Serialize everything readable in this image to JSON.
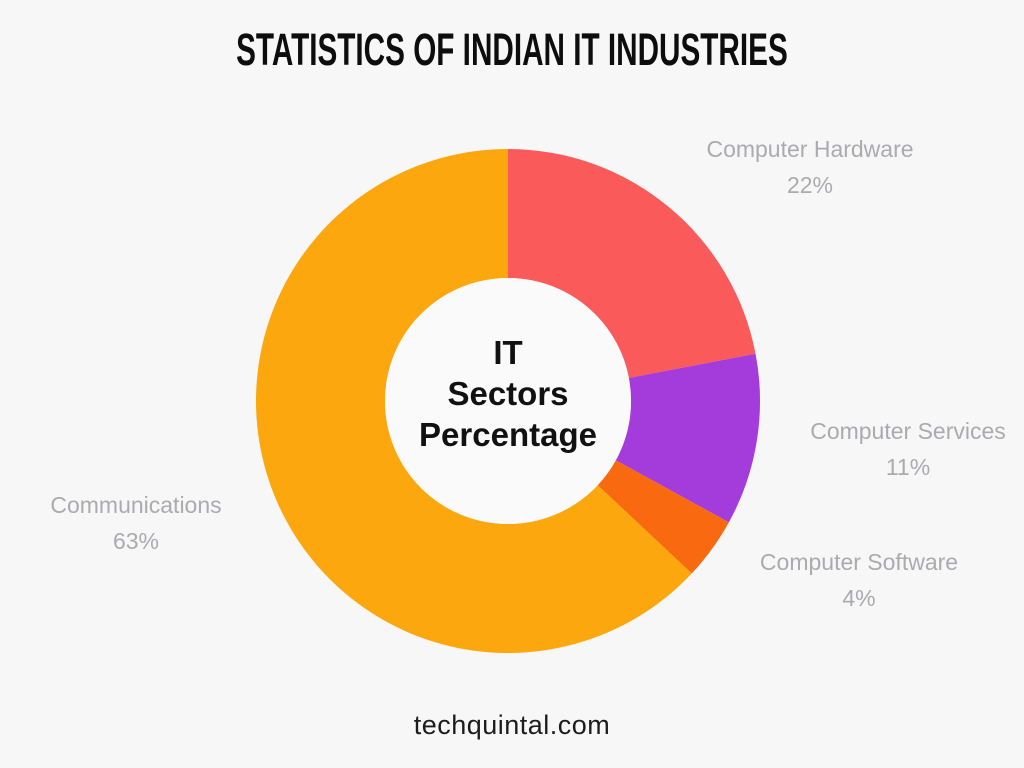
{
  "page": {
    "title": "STATISTICS OF INDIAN IT INDUSTRIES",
    "footer": "techquintal.com",
    "background_color": "#f7f7f8"
  },
  "chart_data": {
    "type": "pie",
    "subtype": "donut",
    "title": "STATISTICS OF INDIAN IT INDUSTRIES",
    "center_label": {
      "line1": "IT",
      "line2": "Sectors",
      "line3": "Percentage"
    },
    "start_angle_deg": 0,
    "direction": "clockwise",
    "inner_radius_ratio": 0.49,
    "hole_color": "#fafafb",
    "label_color": "#ababae",
    "legend_position": "outside-callouts",
    "grid": "off",
    "segments": [
      {
        "label": "Computer Hardware",
        "value": 22,
        "percent_label": "22%",
        "color": "#fb5a5a"
      },
      {
        "label": "Computer Services",
        "value": 11,
        "percent_label": "11%",
        "color": "#a43cdb"
      },
      {
        "label": "Computer Software",
        "value": 4,
        "percent_label": "4%",
        "color": "#f9690f"
      },
      {
        "label": "Communications",
        "value": 63,
        "percent_label": "63%",
        "color": "#fba70d"
      }
    ]
  }
}
